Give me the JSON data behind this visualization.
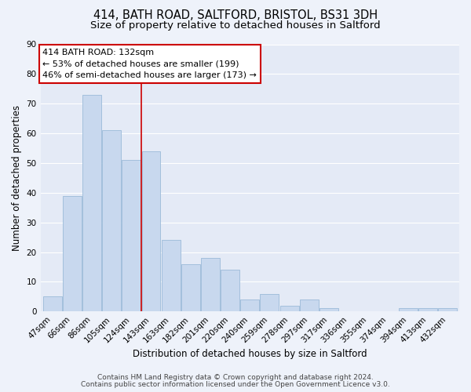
{
  "title": "414, BATH ROAD, SALTFORD, BRISTOL, BS31 3DH",
  "subtitle": "Size of property relative to detached houses in Saltford",
  "xlabel": "Distribution of detached houses by size in Saltford",
  "ylabel": "Number of detached properties",
  "bar_labels": [
    "47sqm",
    "66sqm",
    "86sqm",
    "105sqm",
    "124sqm",
    "143sqm",
    "163sqm",
    "182sqm",
    "201sqm",
    "220sqm",
    "240sqm",
    "259sqm",
    "278sqm",
    "297sqm",
    "317sqm",
    "336sqm",
    "355sqm",
    "374sqm",
    "394sqm",
    "413sqm",
    "432sqm"
  ],
  "bar_values": [
    5,
    39,
    73,
    61,
    51,
    54,
    24,
    16,
    18,
    14,
    4,
    6,
    2,
    4,
    1,
    0,
    0,
    0,
    1,
    1,
    1
  ],
  "bar_color": "#c8d8ee",
  "bar_edge_color": "#9bbad8",
  "ylim": [
    0,
    90
  ],
  "yticks": [
    0,
    10,
    20,
    30,
    40,
    50,
    60,
    70,
    80,
    90
  ],
  "bg_color": "#eef2fa",
  "plot_bg_color": "#e4eaf6",
  "grid_color": "#ffffff",
  "vline_x": 4.5,
  "vline_color": "#cc0000",
  "annotation_title": "414 BATH ROAD: 132sqm",
  "annotation_line1": "← 53% of detached houses are smaller (199)",
  "annotation_line2": "46% of semi-detached houses are larger (173) →",
  "annotation_box_color": "#ffffff",
  "annotation_box_edge": "#cc0000",
  "footer1": "Contains HM Land Registry data © Crown copyright and database right 2024.",
  "footer2": "Contains public sector information licensed under the Open Government Licence v3.0.",
  "title_fontsize": 10.5,
  "subtitle_fontsize": 9.5,
  "xlabel_fontsize": 8.5,
  "ylabel_fontsize": 8.5,
  "tick_fontsize": 7.5,
  "annotation_fontsize": 8,
  "footer_fontsize": 6.5
}
